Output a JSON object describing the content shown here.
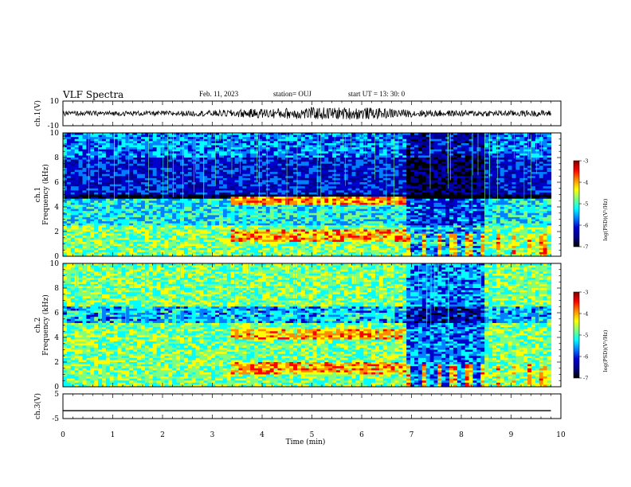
{
  "header": {
    "title": "VLF Spectra",
    "date": "Feb. 11, 2023",
    "station": "station= OUJ",
    "start": "start UT =  13: 30: 0"
  },
  "colorbar": {
    "label": "log(PSD)(V²/Hz)",
    "ticks": [
      "-3",
      "-4",
      "-5",
      "-6",
      "-7"
    ],
    "colors": [
      "#7f0000",
      "#ff0000",
      "#ff8c00",
      "#ffff00",
      "#7fff7f",
      "#00ffff",
      "#0080ff",
      "#0000cd",
      "#00008b",
      "#000000"
    ]
  },
  "chart_data": [
    {
      "type": "line",
      "name_label": "ch.1(V)",
      "ylabel": "ch.1(V)",
      "xlim": [
        0,
        10
      ],
      "ylim": [
        -10,
        10
      ],
      "yticks": [
        "10",
        "-10"
      ],
      "x": [
        0,
        1,
        2,
        3,
        4,
        5,
        6,
        7,
        8,
        9,
        9.8
      ],
      "values": [
        0,
        0,
        0,
        0,
        0,
        0,
        0,
        0,
        0,
        0,
        0
      ],
      "amplitude_note_values": [
        2,
        2,
        2,
        2.5,
        4,
        5,
        5,
        3,
        2.5,
        2.5,
        2.5
      ]
    },
    {
      "type": "heatmap",
      "ylabel": "ch.1\nFrequency (kHz)",
      "ylabel_top": "ch.1",
      "ylabel_bottom": "Frequency (kHz)",
      "xlim": [
        0,
        10
      ],
      "ylim": [
        0,
        10
      ],
      "yticks": [
        "0",
        "2",
        "4",
        "6",
        "8",
        "10"
      ],
      "zlim": [
        -7,
        -3
      ],
      "segments_min": [
        0,
        3.4,
        6.9,
        8.5,
        9.8
      ]
    },
    {
      "type": "heatmap",
      "ylabel": "ch.2\nFrequency (kHz)",
      "ylabel_top": "ch.2",
      "ylabel_bottom": "Frequency (kHz)",
      "xlim": [
        0,
        10
      ],
      "ylim": [
        0,
        10
      ],
      "yticks": [
        "0",
        "2",
        "4",
        "6",
        "8",
        "10"
      ],
      "zlim": [
        -7,
        -3
      ],
      "segments_min": [
        0,
        3.4,
        6.9,
        8.5,
        9.8
      ]
    },
    {
      "type": "line",
      "ylabel": "ch.3(V)",
      "xlim": [
        0,
        10
      ],
      "ylim": [
        -5,
        5
      ],
      "yticks": [
        "5",
        "-5"
      ],
      "x": [
        0,
        9.8
      ],
      "values": [
        -1.8,
        -1.8
      ]
    }
  ],
  "xaxis": {
    "label": "Time (min)",
    "ticks": [
      "0",
      "1",
      "2",
      "3",
      "4",
      "5",
      "6",
      "7",
      "8",
      "9",
      "10"
    ]
  }
}
